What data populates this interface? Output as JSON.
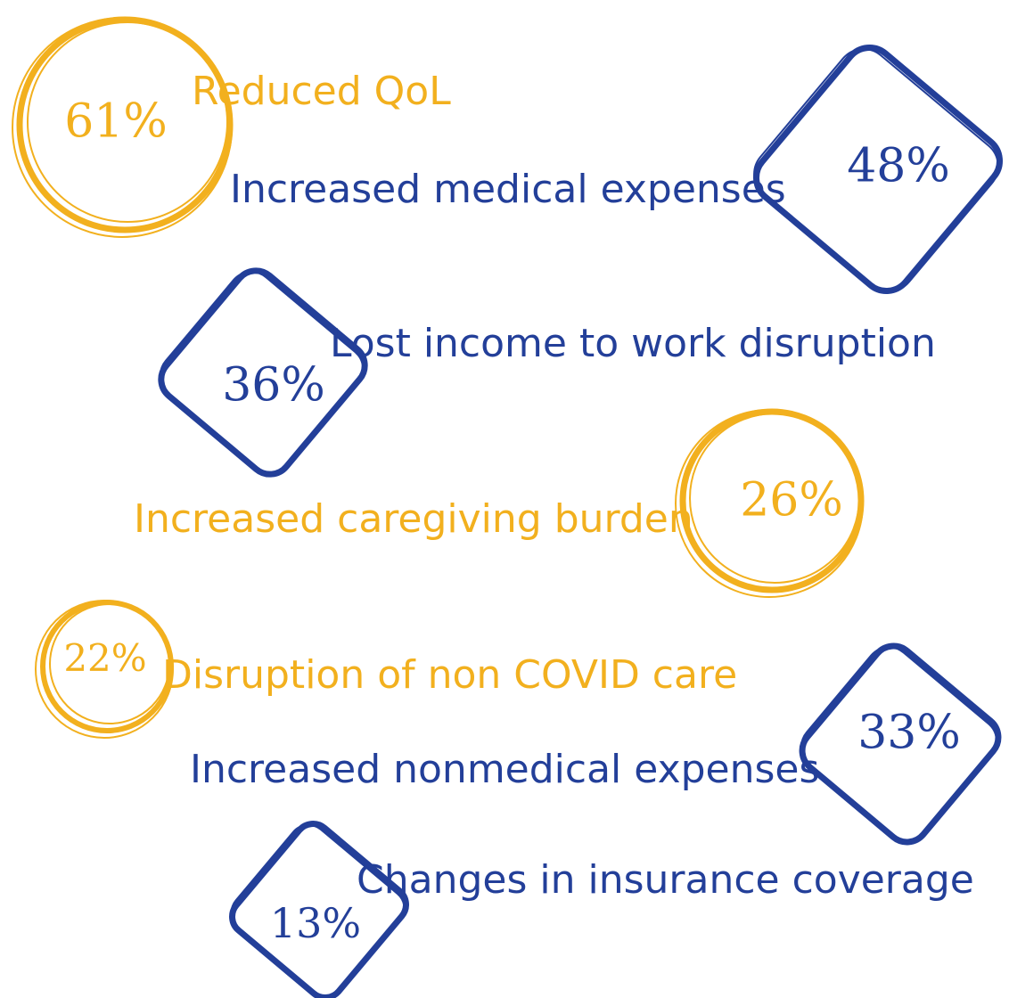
{
  "items": [
    {
      "percent": "61%",
      "label": "Reduced QoL"
    },
    {
      "percent": "48%",
      "label": "Increased medical expenses"
    },
    {
      "percent": "36%",
      "label": "Lost income to work disruption"
    },
    {
      "percent": "26%",
      "label": "Increased caregiving burden"
    },
    {
      "percent": "22%",
      "label": "Disruption of non COVID care"
    },
    {
      "percent": "33%",
      "label": "Increased nonmedical expenses"
    },
    {
      "percent": "13%",
      "label": "Changes in insurance coverage"
    }
  ]
}
